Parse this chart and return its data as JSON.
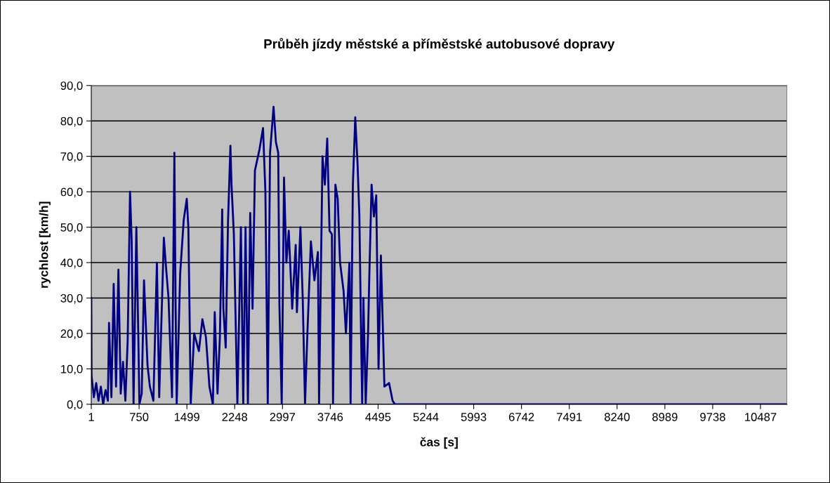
{
  "chart_data": {
    "type": "line",
    "title": "Průběh jízdy městské a příměstské autobusové dopravy",
    "xlabel": "čas [s]",
    "ylabel": "rychlost [km/h]",
    "xlim": [
      1,
      10900
    ],
    "xticks": [
      1,
      750,
      1499,
      2248,
      2997,
      3746,
      4495,
      5244,
      5993,
      6742,
      7491,
      8240,
      8989,
      9738,
      10487
    ],
    "ylim": [
      0,
      90
    ],
    "yticks": [
      {
        "value": 0,
        "label": "0,0"
      },
      {
        "value": 10,
        "label": "10,0"
      },
      {
        "value": 20,
        "label": "20,0"
      },
      {
        "value": 30,
        "label": "30,0"
      },
      {
        "value": 40,
        "label": "40,0"
      },
      {
        "value": 50,
        "label": "50,0"
      },
      {
        "value": 60,
        "label": "60,0"
      },
      {
        "value": 70,
        "label": "70,0"
      },
      {
        "value": 80,
        "label": "80,0"
      },
      {
        "value": 90,
        "label": "90,0"
      }
    ],
    "grid": "y",
    "marker": "none",
    "line_style": "solid",
    "series": [
      {
        "color": "#000080",
        "x": [
          1,
          5,
          41,
          78,
          114,
          151,
          187,
          224,
          261,
          279,
          316,
          352,
          389,
          426,
          462,
          498,
          535,
          571,
          608,
          634,
          663,
          707,
          736,
          755,
          791,
          827,
          882,
          919,
          974,
          1029,
          1065,
          1138,
          1175,
          1211,
          1266,
          1303,
          1321,
          1339,
          1394,
          1449,
          1497,
          1522,
          1540,
          1559,
          1613,
          1687,
          1742,
          1797,
          1852,
          1906,
          1935,
          1979,
          2016,
          2052,
          2071,
          2107,
          2144,
          2181,
          2198,
          2235,
          2290,
          2345,
          2382,
          2418,
          2455,
          2491,
          2528,
          2565,
          2637,
          2692,
          2729,
          2766,
          2802,
          2857,
          2894,
          2930,
          2949,
          2985,
          3021,
          3058,
          3095,
          3149,
          3204,
          3223,
          3278,
          3314,
          3350,
          3387,
          3442,
          3497,
          3552,
          3570,
          3624,
          3661,
          3698,
          3734,
          3771,
          3789,
          3826,
          3862,
          3899,
          3954,
          3991,
          4046,
          4064,
          4100,
          4137,
          4173,
          4202,
          4228,
          4246,
          4265,
          4301,
          4338,
          4356,
          4393,
          4430,
          4466,
          4502,
          4539,
          4575,
          4594,
          4667,
          4722,
          4758,
          10900
        ],
        "values": [
          30,
          8,
          2,
          6,
          1,
          5,
          0,
          4,
          1,
          23,
          2,
          34,
          5,
          38,
          3,
          12,
          1,
          18,
          60,
          46,
          0,
          50,
          21,
          0,
          3,
          35,
          11,
          5,
          1,
          40,
          2,
          47,
          38,
          30,
          2,
          71,
          30,
          0,
          37,
          52,
          58,
          50,
          27,
          0,
          20,
          15,
          24,
          19,
          5,
          0,
          26,
          3,
          19,
          55,
          27,
          16,
          52,
          73,
          62,
          48,
          0,
          50,
          0,
          50,
          0,
          54,
          27,
          66,
          72,
          78,
          60,
          0,
          71,
          84,
          74,
          71,
          28,
          0,
          64,
          40,
          49,
          27,
          45,
          26,
          50,
          30,
          0,
          20,
          46,
          35,
          43,
          0,
          70,
          62,
          75,
          49,
          48,
          0,
          62,
          58,
          40,
          32,
          20,
          40,
          0,
          62,
          81,
          68,
          53,
          20,
          0,
          30,
          0,
          20,
          35,
          62,
          53,
          59,
          10,
          42,
          18,
          5,
          6,
          1,
          0,
          0
        ]
      }
    ]
  }
}
